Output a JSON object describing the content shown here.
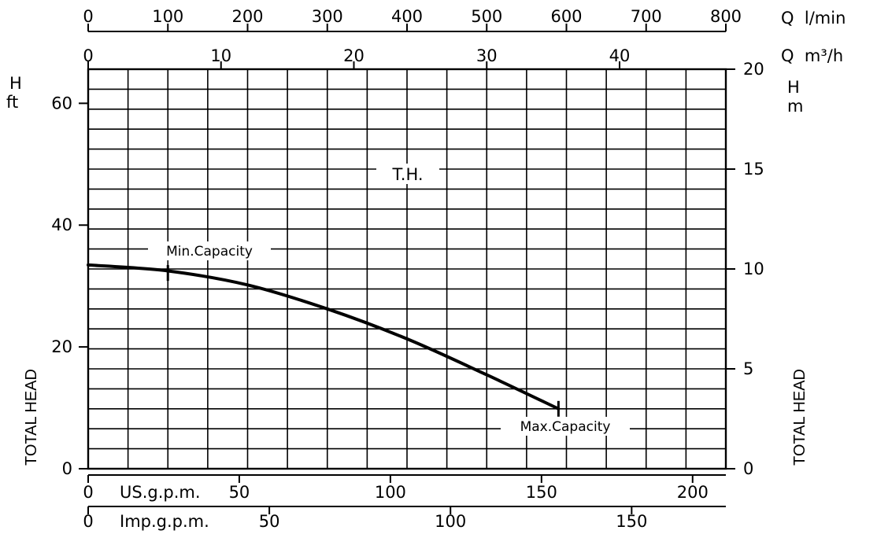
{
  "chart_data": {
    "type": "line",
    "curve_label": "T.H.",
    "y_axis_title": "TOTAL HEAD",
    "left_axis": {
      "unit_top": "H",
      "unit_bottom": "ft",
      "ylim": [
        0,
        65.6
      ],
      "ticks": [
        0,
        20,
        40,
        60
      ],
      "tick_labels": [
        "0",
        "20",
        "40",
        "60"
      ]
    },
    "right_axis": {
      "unit_top": "H",
      "unit_bottom": "m",
      "ylim": [
        0,
        20
      ],
      "ticks": [
        0,
        5,
        10,
        15,
        20
      ],
      "tick_labels": [
        "0",
        "5",
        "10",
        "15",
        "20"
      ]
    },
    "top_axes": [
      {
        "unit": "Q  l/min",
        "xlim": [
          0,
          800
        ],
        "ticks": [
          0,
          100,
          200,
          300,
          400,
          500,
          600,
          700,
          800
        ],
        "tick_labels": [
          "0",
          "100",
          "200",
          "300",
          "400",
          "500",
          "600",
          "700",
          "800"
        ]
      },
      {
        "unit": "Q  m³/h",
        "xlim": [
          0,
          48
        ],
        "ticks": [
          0,
          10,
          20,
          30,
          40
        ],
        "tick_labels": [
          "0",
          "10",
          "20",
          "30",
          "40"
        ]
      }
    ],
    "bottom_axes": [
      {
        "unit": "US.g.p.m.",
        "xlim": [
          0,
          211
        ],
        "ticks": [
          0,
          50,
          100,
          150,
          200
        ],
        "tick_labels": [
          "0",
          "50",
          "100",
          "150",
          "200"
        ]
      },
      {
        "unit": "Imp.g.p.m.",
        "xlim": [
          0,
          176
        ],
        "ticks": [
          0,
          50,
          100,
          150
        ],
        "tick_labels": [
          "0",
          "50",
          "100",
          "150"
        ]
      }
    ],
    "grid": true,
    "series": [
      {
        "x_unit": "l/min",
        "y_unit": "m",
        "x": [
          0,
          100,
          200,
          300,
          400,
          500,
          590
        ],
        "y": [
          10.2,
          9.9,
          9.2,
          8.0,
          6.5,
          4.7,
          3.0
        ]
      }
    ],
    "annotations": [
      {
        "text": "Min.Capacity",
        "x_lmin": 100,
        "y_m": 9.8
      },
      {
        "text": "Max.Capacity",
        "x_lmin": 590,
        "y_m": 3.0
      }
    ]
  }
}
